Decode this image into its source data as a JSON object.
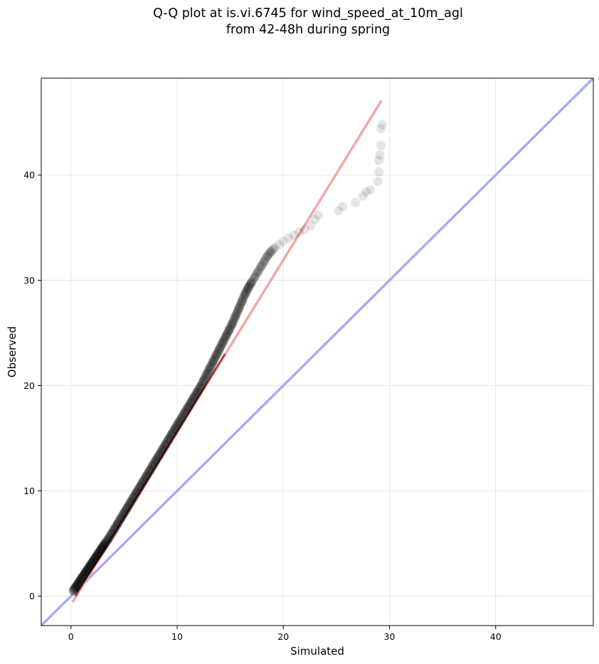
{
  "figure": {
    "title_line1": "Q-Q plot at is.vi.6745 for wind_speed_at_10m_agl",
    "title_line2": "from 42-48h during spring"
  },
  "chart_data": {
    "type": "scatter",
    "xlabel": "Simulated",
    "ylabel": "Observed",
    "xlim": [
      -2.8,
      49.2
    ],
    "ylim": [
      -2.8,
      49.2
    ],
    "xticks": [
      0,
      10,
      20,
      30,
      40
    ],
    "yticks": [
      0,
      10,
      20,
      30,
      40
    ],
    "grid": true,
    "point_color": "#000000",
    "reference_lines": [
      {
        "name": "1:1 line",
        "color": "#aaaaf5",
        "points": [
          [
            -2.8,
            -2.8
          ],
          [
            49.2,
            49.2
          ]
        ]
      },
      {
        "name": "fit line",
        "color": "#f5a6a6",
        "points": [
          [
            0.2,
            -0.5
          ],
          [
            29.2,
            47.0
          ]
        ]
      },
      {
        "name": "fit line overlay",
        "color": "#8b1a1a",
        "points": [
          [
            0.4,
            0.0
          ],
          [
            14.5,
            23.0
          ]
        ]
      }
    ],
    "points": [
      [
        0.2,
        0.5
      ],
      [
        0.4,
        0.8
      ],
      [
        0.6,
        1.1
      ],
      [
        0.8,
        1.4
      ],
      [
        1.0,
        1.7
      ],
      [
        1.2,
        2.0
      ],
      [
        1.4,
        2.3
      ],
      [
        1.6,
        2.6
      ],
      [
        1.8,
        2.9
      ],
      [
        2.0,
        3.2
      ],
      [
        2.2,
        3.5
      ],
      [
        2.4,
        3.8
      ],
      [
        2.6,
        4.1
      ],
      [
        2.8,
        4.4
      ],
      [
        3.0,
        4.7
      ],
      [
        3.2,
        5.0
      ],
      [
        3.5,
        5.4
      ],
      [
        3.8,
        5.9
      ],
      [
        4.1,
        6.4
      ],
      [
        4.4,
        6.9
      ],
      [
        4.7,
        7.4
      ],
      [
        5.0,
        7.9
      ],
      [
        5.3,
        8.4
      ],
      [
        5.6,
        8.9
      ],
      [
        5.9,
        9.4
      ],
      [
        6.2,
        9.9
      ],
      [
        6.5,
        10.4
      ],
      [
        6.8,
        10.9
      ],
      [
        7.1,
        11.4
      ],
      [
        7.4,
        11.9
      ],
      [
        7.7,
        12.4
      ],
      [
        8.0,
        12.9
      ],
      [
        8.3,
        13.4
      ],
      [
        8.6,
        13.9
      ],
      [
        8.9,
        14.4
      ],
      [
        9.2,
        14.9
      ],
      [
        9.5,
        15.4
      ],
      [
        9.8,
        15.9
      ],
      [
        10.1,
        16.4
      ],
      [
        10.4,
        16.9
      ],
      [
        10.7,
        17.4
      ],
      [
        11.0,
        17.9
      ],
      [
        11.3,
        18.4
      ],
      [
        11.6,
        18.9
      ],
      [
        11.9,
        19.4
      ],
      [
        12.2,
        19.9
      ],
      [
        12.5,
        20.5
      ],
      [
        12.8,
        21.1
      ],
      [
        13.1,
        21.7
      ],
      [
        13.4,
        22.3
      ],
      [
        13.7,
        22.9
      ],
      [
        14.0,
        23.5
      ],
      [
        14.3,
        24.1
      ],
      [
        14.6,
        24.7
      ],
      [
        14.9,
        25.3
      ],
      [
        15.2,
        25.9
      ],
      [
        15.5,
        26.6
      ],
      [
        15.8,
        27.3
      ],
      [
        16.1,
        28.0
      ],
      [
        16.4,
        28.7
      ],
      [
        16.7,
        29.3
      ],
      [
        17.0,
        29.8
      ],
      [
        17.3,
        30.3
      ],
      [
        17.6,
        30.8
      ],
      [
        17.9,
        31.3
      ],
      [
        18.2,
        31.8
      ],
      [
        18.5,
        32.3
      ],
      [
        18.8,
        32.7
      ],
      [
        19.2,
        33.1
      ],
      [
        19.6,
        33.4
      ],
      [
        20.0,
        33.7
      ],
      [
        20.5,
        34.0
      ],
      [
        21.0,
        34.3
      ],
      [
        21.5,
        34.6
      ],
      [
        22.0,
        34.8
      ],
      [
        22.6,
        35.2
      ],
      [
        23.0,
        35.8
      ],
      [
        23.3,
        36.2
      ],
      [
        25.2,
        36.6
      ],
      [
        25.6,
        37.0
      ],
      [
        26.8,
        37.4
      ],
      [
        27.5,
        38.0
      ],
      [
        27.8,
        38.4
      ],
      [
        28.2,
        38.6
      ],
      [
        28.9,
        39.4
      ],
      [
        29.0,
        40.3
      ],
      [
        29.0,
        41.4
      ],
      [
        29.1,
        41.9
      ],
      [
        29.2,
        42.8
      ],
      [
        29.2,
        44.4
      ],
      [
        29.3,
        44.8
      ]
    ]
  }
}
